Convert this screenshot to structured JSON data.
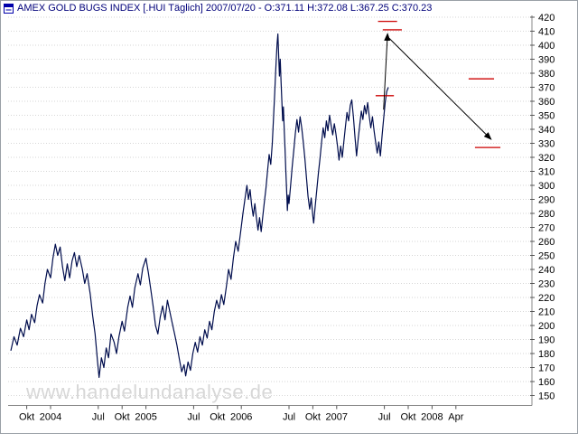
{
  "window": {
    "title": "AMEX GOLD BUGS INDEX [.HUI  Täglich] 2007/07/20 - O:371.11 H:372.08 L:367.25 C:370.23"
  },
  "watermark": "www.handelundanalyse.de",
  "colors": {
    "series": "#000d4d",
    "title": "#00007a",
    "grid": "#d6d6d6",
    "axis": "#8a8a8a",
    "tick_text": "#000000",
    "annotation_red": "#cc0000",
    "arrow": "#000000",
    "watermark": "#d7d7d7",
    "icon_blue": "#0000aa"
  },
  "chart_data": {
    "type": "line",
    "title": "AMEX GOLD BUGS INDEX [.HUI Täglich]",
    "date": "2007/07/20",
    "ohlc": {
      "open": 371.11,
      "high": 372.08,
      "low": 367.25,
      "close": 370.23
    },
    "ylim": [
      145,
      424
    ],
    "grid": true,
    "legend": "none",
    "y_ticks": [
      420,
      410,
      400,
      390,
      380,
      370,
      360,
      350,
      340,
      330,
      320,
      310,
      300,
      290,
      280,
      270,
      260,
      250,
      240,
      230,
      220,
      210,
      200,
      190,
      180,
      170,
      160,
      150
    ],
    "x_axis_unit": "months since 2003-08",
    "x_ticks": [
      {
        "label": "Okt",
        "t": 2
      },
      {
        "label": "2004",
        "t": 5
      },
      {
        "label": "Jul",
        "t": 11
      },
      {
        "label": "Okt",
        "t": 14
      },
      {
        "label": "2005",
        "t": 17
      },
      {
        "label": "Jul",
        "t": 23
      },
      {
        "label": "Okt",
        "t": 26
      },
      {
        "label": "2006",
        "t": 29
      },
      {
        "label": "Jul",
        "t": 35
      },
      {
        "label": "Okt",
        "t": 38
      },
      {
        "label": "2007",
        "t": 41
      },
      {
        "label": "Jul",
        "t": 47
      },
      {
        "label": "Okt",
        "t": 50
      },
      {
        "label": "2008",
        "t": 53
      },
      {
        "label": "Apr",
        "t": 56
      }
    ],
    "series": [
      {
        "name": ".HUI",
        "points": [
          [
            0,
            182
          ],
          [
            0.4,
            192
          ],
          [
            0.8,
            186
          ],
          [
            1.2,
            198
          ],
          [
            1.6,
            192
          ],
          [
            2,
            204
          ],
          [
            2.3,
            197
          ],
          [
            2.6,
            208
          ],
          [
            3,
            202
          ],
          [
            3.3,
            214
          ],
          [
            3.6,
            222
          ],
          [
            4,
            216
          ],
          [
            4.3,
            230
          ],
          [
            4.6,
            240
          ],
          [
            5,
            234
          ],
          [
            5.3,
            248
          ],
          [
            5.6,
            258
          ],
          [
            5.9,
            250
          ],
          [
            6.2,
            256
          ],
          [
            6.5,
            242
          ],
          [
            6.8,
            232
          ],
          [
            7.1,
            244
          ],
          [
            7.4,
            234
          ],
          [
            7.7,
            246
          ],
          [
            8,
            252
          ],
          [
            8.3,
            242
          ],
          [
            8.6,
            250
          ],
          [
            9,
            240
          ],
          [
            9.3,
            230
          ],
          [
            9.6,
            237
          ],
          [
            10,
            222
          ],
          [
            10.3,
            207
          ],
          [
            10.6,
            194
          ],
          [
            10.9,
            175
          ],
          [
            11.1,
            163
          ],
          [
            11.4,
            177
          ],
          [
            11.7,
            170
          ],
          [
            12,
            184
          ],
          [
            12.3,
            177
          ],
          [
            12.6,
            194
          ],
          [
            13,
            188
          ],
          [
            13.3,
            180
          ],
          [
            13.6,
            192
          ],
          [
            14,
            203
          ],
          [
            14.3,
            196
          ],
          [
            14.7,
            213
          ],
          [
            15,
            221
          ],
          [
            15.3,
            213
          ],
          [
            15.6,
            227
          ],
          [
            16,
            237
          ],
          [
            16.3,
            229
          ],
          [
            16.6,
            241
          ],
          [
            17,
            248
          ],
          [
            17.3,
            238
          ],
          [
            17.6,
            226
          ],
          [
            17.9,
            214
          ],
          [
            18.2,
            200
          ],
          [
            18.5,
            194
          ],
          [
            18.8,
            206
          ],
          [
            19.1,
            214
          ],
          [
            19.4,
            204
          ],
          [
            19.7,
            218
          ],
          [
            20,
            210
          ],
          [
            20.3,
            202
          ],
          [
            20.6,
            194
          ],
          [
            20.9,
            186
          ],
          [
            21.2,
            176
          ],
          [
            21.5,
            167
          ],
          [
            21.8,
            172
          ],
          [
            22,
            164
          ],
          [
            22.3,
            174
          ],
          [
            22.6,
            168
          ],
          [
            22.9,
            180
          ],
          [
            23.2,
            188
          ],
          [
            23.5,
            181
          ],
          [
            23.8,
            192
          ],
          [
            24.1,
            186
          ],
          [
            24.4,
            197
          ],
          [
            24.7,
            191
          ],
          [
            25,
            203
          ],
          [
            25.3,
            197
          ],
          [
            25.6,
            210
          ],
          [
            25.9,
            218
          ],
          [
            26.2,
            212
          ],
          [
            26.5,
            222
          ],
          [
            26.8,
            215
          ],
          [
            27.1,
            227
          ],
          [
            27.4,
            240
          ],
          [
            27.7,
            233
          ],
          [
            28,
            248
          ],
          [
            28.3,
            260
          ],
          [
            28.6,
            253
          ],
          [
            28.9,
            266
          ],
          [
            29.2,
            280
          ],
          [
            29.5,
            292
          ],
          [
            29.7,
            300
          ],
          [
            29.9,
            290
          ],
          [
            30.1,
            297
          ],
          [
            30.3,
            286
          ],
          [
            30.5,
            278
          ],
          [
            30.7,
            287
          ],
          [
            30.9,
            277
          ],
          [
            31.1,
            268
          ],
          [
            31.3,
            277
          ],
          [
            31.5,
            267
          ],
          [
            31.7,
            278
          ],
          [
            31.9,
            288
          ],
          [
            32.1,
            298
          ],
          [
            32.3,
            310
          ],
          [
            32.5,
            322
          ],
          [
            32.7,
            315
          ],
          [
            32.9,
            330
          ],
          [
            33,
            342
          ],
          [
            33.1,
            354
          ],
          [
            33.2,
            366
          ],
          [
            33.3,
            378
          ],
          [
            33.4,
            390
          ],
          [
            33.5,
            401
          ],
          [
            33.6,
            408
          ],
          [
            33.7,
            392
          ],
          [
            33.8,
            378
          ],
          [
            33.9,
            390
          ],
          [
            34,
            374
          ],
          [
            34.1,
            360
          ],
          [
            34.2,
            346
          ],
          [
            34.3,
            356
          ],
          [
            34.4,
            340
          ],
          [
            34.5,
            326
          ],
          [
            34.6,
            310
          ],
          [
            34.7,
            296
          ],
          [
            34.8,
            282
          ],
          [
            34.9,
            293
          ],
          [
            35,
            287
          ],
          [
            35.2,
            300
          ],
          [
            35.4,
            313
          ],
          [
            35.6,
            325
          ],
          [
            35.8,
            337
          ],
          [
            36,
            347
          ],
          [
            36.2,
            338
          ],
          [
            36.4,
            349
          ],
          [
            36.6,
            341
          ],
          [
            36.8,
            331
          ],
          [
            37,
            319
          ],
          [
            37.2,
            305
          ],
          [
            37.4,
            292
          ],
          [
            37.6,
            283
          ],
          [
            37.8,
            291
          ],
          [
            38,
            278
          ],
          [
            38.1,
            273
          ],
          [
            38.3,
            285
          ],
          [
            38.5,
            297
          ],
          [
            38.7,
            309
          ],
          [
            38.9,
            319
          ],
          [
            39.1,
            331
          ],
          [
            39.3,
            341
          ],
          [
            39.5,
            334
          ],
          [
            39.7,
            346
          ],
          [
            39.9,
            339
          ],
          [
            40.1,
            350
          ],
          [
            40.3,
            343
          ],
          [
            40.5,
            336
          ],
          [
            40.7,
            344
          ],
          [
            40.9,
            337
          ],
          [
            41.1,
            328
          ],
          [
            41.3,
            318
          ],
          [
            41.5,
            328
          ],
          [
            41.7,
            320
          ],
          [
            41.9,
            331
          ],
          [
            42.1,
            342
          ],
          [
            42.3,
            352
          ],
          [
            42.5,
            346
          ],
          [
            42.7,
            357
          ],
          [
            42.9,
            361
          ],
          [
            43.1,
            349
          ],
          [
            43.3,
            335
          ],
          [
            43.5,
            321
          ],
          [
            43.7,
            333
          ],
          [
            43.9,
            343
          ],
          [
            44.1,
            353
          ],
          [
            44.3,
            347
          ],
          [
            44.5,
            357
          ],
          [
            44.7,
            351
          ],
          [
            44.9,
            359
          ],
          [
            45.1,
            349
          ],
          [
            45.3,
            341
          ],
          [
            45.5,
            349
          ],
          [
            45.7,
            339
          ],
          [
            45.9,
            331
          ],
          [
            46.1,
            323
          ],
          [
            46.3,
            331
          ],
          [
            46.5,
            321
          ],
          [
            46.7,
            335
          ],
          [
            46.9,
            347
          ],
          [
            47.1,
            359
          ],
          [
            47.3,
            367
          ],
          [
            47.5,
            370
          ]
        ]
      }
    ],
    "annotations": {
      "levels": [
        {
          "t1": 46.2,
          "t2": 48.6,
          "v": 417
        },
        {
          "t1": 46.8,
          "t2": 49.2,
          "v": 411
        },
        {
          "t1": 45.9,
          "t2": 48.2,
          "v": 364
        },
        {
          "t1": 57.6,
          "t2": 60.8,
          "v": 376
        },
        {
          "t1": 58.4,
          "t2": 61.6,
          "v": 327
        }
      ],
      "arrows": [
        {
          "t1": 46.9,
          "v1": 354,
          "t2": 47.4,
          "v2": 408
        },
        {
          "t1": 47.6,
          "v1": 405,
          "t2": 60.4,
          "v2": 333
        }
      ]
    }
  }
}
